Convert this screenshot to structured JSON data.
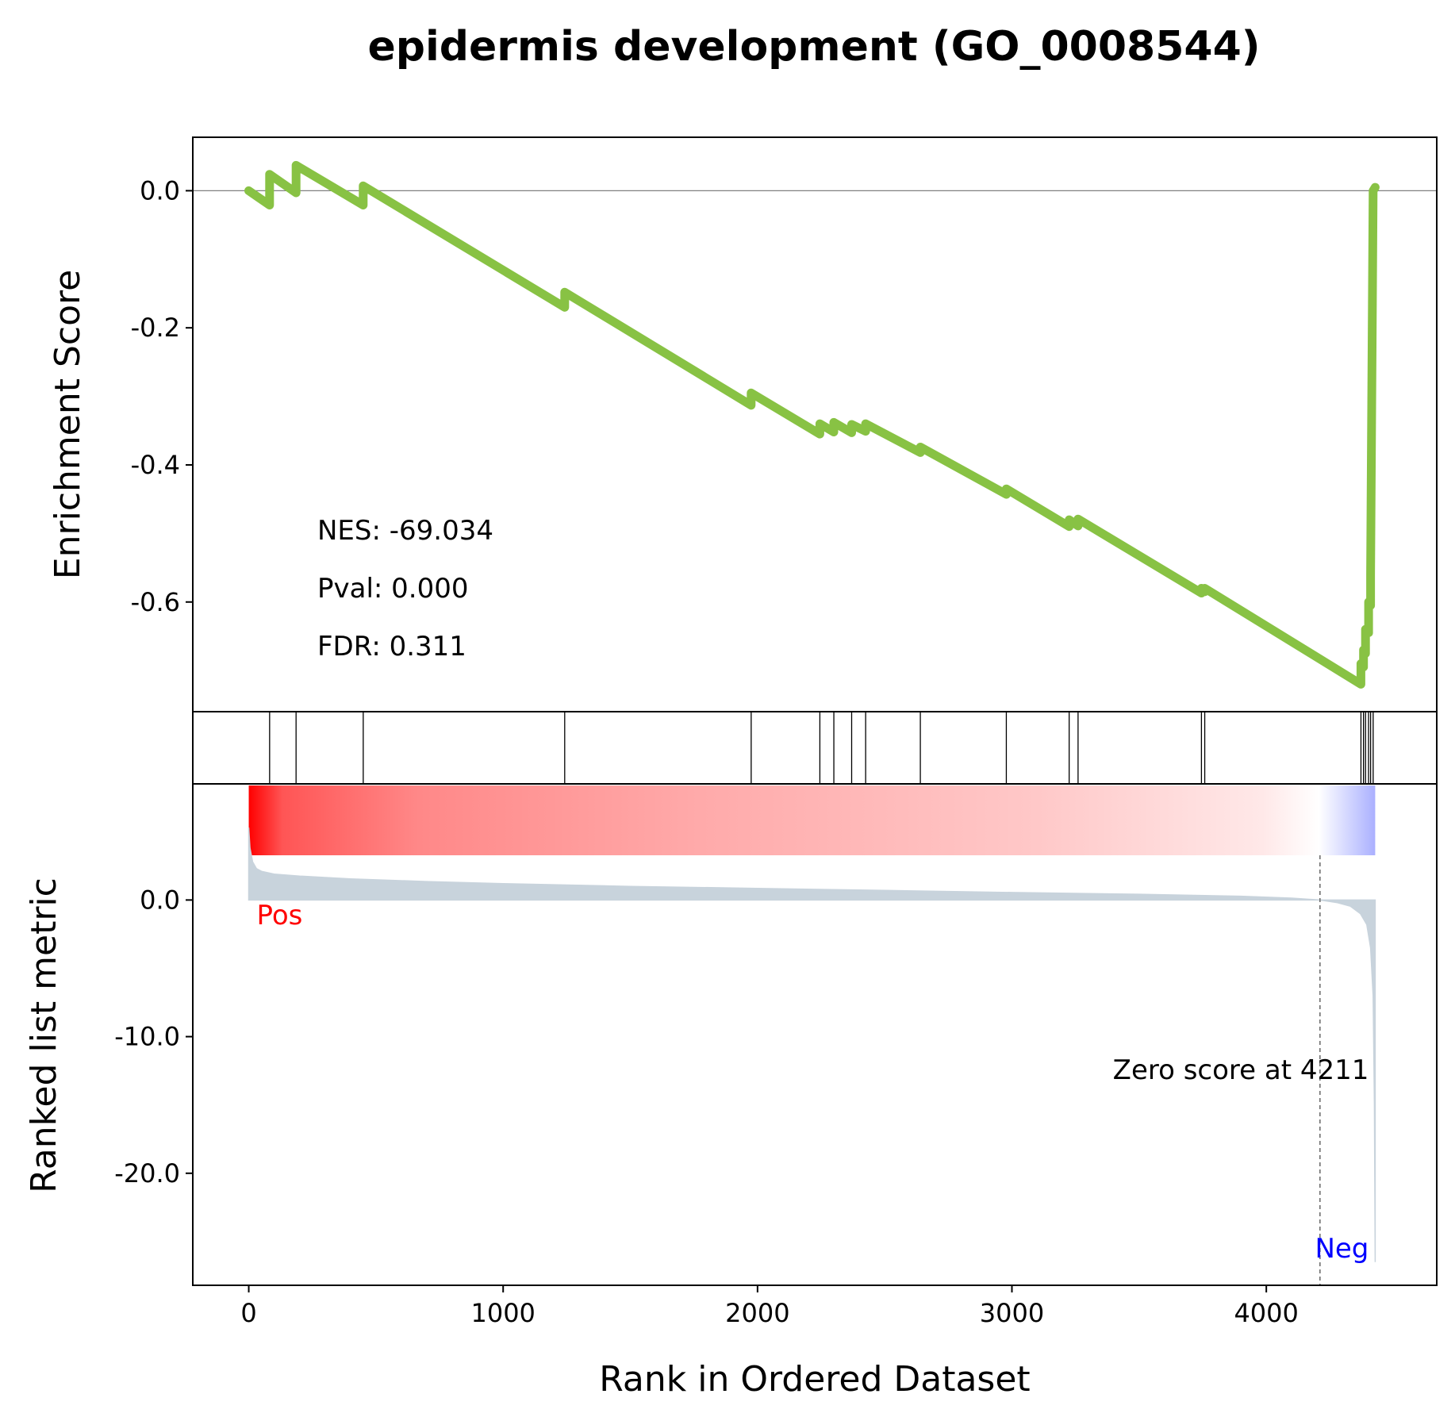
{
  "title": "epidermis development (GO_0008544)",
  "chart_data": {
    "type": "line",
    "title": "epidermis development (GO_0008544)",
    "xlabel": "Rank in Ordered Dataset",
    "xlim": [
      -220,
      4670
    ],
    "xticks": [
      0,
      1000,
      2000,
      3000,
      4000
    ],
    "xtick_labels": [
      "0",
      "1000",
      "2000",
      "3000",
      "4000"
    ],
    "colors": {
      "es_line": "#88c244",
      "pos": "#ff0000",
      "neg": "#0000ff",
      "metric_fill": "#c8d3dc",
      "zero_line": "#808080"
    },
    "es_panel": {
      "ylabel": "Enrichment Score",
      "ylim": [
        -0.76,
        0.078
      ],
      "yticks": [
        0.0,
        -0.2,
        -0.4,
        -0.6
      ],
      "ytick_labels": [
        "0.0",
        "-0.2",
        "-0.4",
        "-0.6"
      ],
      "series": [
        {
          "x": [
            0,
            82,
            82,
            186,
            186,
            450,
            450,
            1242,
            1242,
            1975,
            1975,
            2245,
            2245,
            2300,
            2300,
            2370,
            2370,
            2425,
            2425,
            2640,
            2640,
            2978,
            2978,
            3225,
            3225,
            3260,
            3260,
            3745,
            3745,
            3758,
            3758,
            4372,
            4372,
            4382,
            4382,
            4390,
            4390,
            4402,
            4402,
            4410,
            4410,
            4420,
            4420,
            4428
          ],
          "y": [
            0.0,
            -0.021,
            0.024,
            -0.003,
            0.037,
            -0.021,
            0.007,
            -0.17,
            -0.148,
            -0.313,
            -0.295,
            -0.355,
            -0.34,
            -0.352,
            -0.338,
            -0.353,
            -0.341,
            -0.351,
            -0.34,
            -0.382,
            -0.374,
            -0.443,
            -0.435,
            -0.49,
            -0.48,
            -0.489,
            -0.479,
            -0.587,
            -0.58,
            -0.585,
            -0.58,
            -0.72,
            -0.69,
            -0.695,
            -0.67,
            -0.675,
            -0.64,
            -0.645,
            -0.6,
            -0.605,
            -0.56,
            0.0,
            0.0,
            0.005
          ]
        }
      ],
      "annotations": [
        "NES: -69.034",
        "Pval: 0.000",
        "FDR: 0.311"
      ]
    },
    "hits": [
      82,
      186,
      450,
      1242,
      1975,
      2245,
      2300,
      2370,
      2425,
      2640,
      2978,
      3225,
      3260,
      3745,
      3758,
      4372,
      4382,
      4390,
      4402,
      4410,
      4420
    ],
    "metric_panel": {
      "ylabel": "Ranked list metric",
      "ylim": [
        -28.2,
        8.5
      ],
      "yticks": [
        0.0,
        -10.0,
        -20.0
      ],
      "ytick_labels": [
        "0.0",
        "-10.0",
        "-20.0"
      ],
      "x": [
        0,
        5,
        15,
        30,
        50,
        100,
        200,
        400,
        700,
        1000,
        1500,
        2000,
        2500,
        3000,
        3500,
        3900,
        4100,
        4211,
        4280,
        4330,
        4370,
        4395,
        4410,
        4420,
        4425,
        4428
      ],
      "y": [
        5.3,
        3.8,
        2.8,
        2.3,
        2.1,
        1.9,
        1.75,
        1.55,
        1.35,
        1.2,
        1.0,
        0.85,
        0.7,
        0.55,
        0.42,
        0.28,
        0.14,
        0.0,
        -0.2,
        -0.45,
        -1.0,
        -1.8,
        -3.5,
        -7.0,
        -15.0,
        -26.5
      ],
      "pos_label": "Pos",
      "neg_label": "Neg",
      "zero_score_rank": 4211,
      "zero_score_label": "Zero score at 4211"
    }
  }
}
